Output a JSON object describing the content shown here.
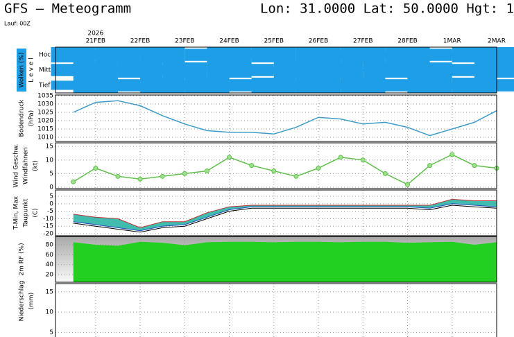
{
  "header": {
    "title": "GFS – Meteogramm",
    "location": "Lon: 31.0000 Lat: 50.0000 Hgt: 1",
    "run": "Lauf: 00Z"
  },
  "chart_data": [
    {
      "type": "cloud",
      "ylabel": "Wolken (%)",
      "ylabel2": "L e v e l",
      "year_label": "2026",
      "xlim": [
        -0.9,
        9
      ],
      "xticks": [
        {
          "value": 0,
          "label": "21FEB"
        },
        {
          "value": 1,
          "label": "22FEB"
        },
        {
          "value": 2,
          "label": "23FEB"
        },
        {
          "value": 3,
          "label": "24FEB"
        },
        {
          "value": 4,
          "label": "25FEB"
        },
        {
          "value": 5,
          "label": "26FEB"
        },
        {
          "value": 6,
          "label": "27FEB"
        },
        {
          "value": 7,
          "label": "28FEB"
        },
        {
          "value": 8,
          "label": "1MAR"
        },
        {
          "value": 9,
          "label": "2MAR"
        }
      ],
      "x": [
        -0.5,
        0,
        0.5,
        1,
        1.5,
        2,
        2.5,
        3,
        3.5,
        4,
        4.5,
        5,
        5.5,
        6,
        6.5,
        7,
        7.5,
        8,
        8.5,
        9
      ],
      "color": "#1e9ee6",
      "series": [
        {
          "name": "Hoch",
          "values": [
            100,
            60,
            100,
            40,
            100,
            0,
            80,
            100,
            60,
            100,
            0,
            100,
            60,
            100,
            40,
            100,
            80,
            40,
            100,
            100
          ]
        },
        {
          "name": "Mittel",
          "values": [
            80,
            100,
            40,
            100,
            60,
            100,
            20,
            100,
            80,
            40,
            100,
            60,
            100,
            20,
            100,
            60,
            100,
            80,
            60,
            100
          ]
        },
        {
          "name": "Tief",
          "values": [
            60,
            100,
            80,
            40,
            100,
            60,
            100,
            40,
            80,
            100,
            60,
            100,
            40,
            100,
            80,
            60,
            100,
            40,
            100,
            80
          ]
        }
      ]
    },
    {
      "type": "line",
      "ylabel": "Bodendruck",
      "ylabel2": "(hPa)",
      "color": "#3c9bc8",
      "ylim": [
        1007.5,
        1035.4
      ],
      "yticks": [
        1010,
        1015,
        1020,
        1025,
        1030,
        1035
      ],
      "x": [
        -0.5,
        0,
        0.5,
        1,
        1.5,
        2,
        2.5,
        3,
        3.5,
        4,
        4.5,
        5,
        5.5,
        6,
        6.5,
        7,
        7.5,
        8,
        8.5,
        9
      ],
      "values": [
        1025,
        1031,
        1032,
        1029,
        1023,
        1018,
        1014,
        1013,
        1013,
        1012,
        1016,
        1022,
        1021,
        1018,
        1019,
        1016,
        1011,
        1015,
        1019,
        1026
      ]
    },
    {
      "type": "marker-line",
      "ylabel": "Wind Geschw.",
      "ylabel2": "Windfahnen",
      "ylabel3": "(kt)",
      "color": "#5fbf4a",
      "ylim": [
        -0.5,
        16.3
      ],
      "yticks": [
        0,
        5,
        10,
        15
      ],
      "x": [
        -0.5,
        0,
        0.5,
        1,
        1.5,
        2,
        2.5,
        3,
        3.5,
        4,
        4.5,
        5,
        5.5,
        6,
        6.5,
        7,
        7.5,
        8,
        8.5,
        9
      ],
      "values": [
        2,
        7,
        4,
        3,
        4,
        5,
        6,
        11,
        8,
        6,
        4,
        7,
        11,
        10,
        5,
        1,
        8,
        12,
        8,
        7
      ]
    },
    {
      "type": "band",
      "ylabel": "T-Min, Max",
      "ylabel2": "Taupunkt",
      "ylabel3": "(C)",
      "ylim": [
        -21.4,
        9.2
      ],
      "yticks": [
        -20,
        -15,
        -10,
        -5,
        0,
        5
      ],
      "x": [
        -0.5,
        0,
        0.5,
        1,
        1.5,
        2,
        2.5,
        3,
        3.5,
        4,
        4.5,
        5,
        5.5,
        6,
        6.5,
        7,
        7.5,
        8,
        8.5,
        9
      ],
      "band_color": "#20b0a0",
      "series": [
        {
          "color": "#c03030",
          "values": [
            -7,
            -9,
            -10,
            -16,
            -12,
            -12,
            -6,
            -2,
            -1,
            -1,
            -1,
            -1,
            -1,
            -1,
            -1,
            -1,
            -1,
            3,
            2,
            2
          ]
        },
        {
          "color": "#2050c0",
          "values": [
            -12,
            -14,
            -16,
            -18,
            -15,
            -14,
            -9,
            -4,
            -2,
            -2,
            -2,
            -2,
            -2,
            -2,
            -2,
            -2,
            -3,
            0,
            -1,
            -2
          ]
        },
        {
          "color": "#000000",
          "values": [
            -13,
            -15,
            -17,
            -19,
            -16,
            -15,
            -10,
            -5,
            -3,
            -3,
            -3,
            -3,
            -3,
            -3,
            -3,
            -3,
            -4,
            -1,
            -2,
            -3
          ]
        }
      ]
    },
    {
      "type": "area",
      "ylabel": "2m RF (%)",
      "color": "#22d022",
      "ylim": [
        4.7,
        96.7
      ],
      "yticks": [
        20,
        40,
        60,
        80
      ],
      "x": [
        -0.5,
        0,
        0.5,
        1,
        1.5,
        2,
        2.5,
        3,
        3.5,
        4,
        4.5,
        5,
        5.5,
        6,
        6.5,
        7,
        7.5,
        8,
        8.5,
        9
      ],
      "values": [
        85,
        80,
        78,
        86,
        84,
        79,
        85,
        86,
        86,
        85,
        86,
        86,
        85,
        86,
        86,
        84,
        85,
        86,
        80,
        85
      ]
    },
    {
      "type": "empty",
      "ylabel": "Niederschlag",
      "ylabel2": "(mm)",
      "ylim": [
        0,
        17
      ],
      "yticks": [
        5,
        10,
        15
      ]
    }
  ]
}
